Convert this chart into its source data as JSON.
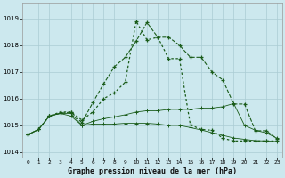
{
  "title": "Graphe pression niveau de la mer (hPa)",
  "background_color": "#cce8ee",
  "grid_color": "#aaccd4",
  "line_color": "#1a5c1a",
  "x_labels": [
    "0",
    "1",
    "2",
    "3",
    "4",
    "5",
    "6",
    "7",
    "8",
    "9",
    "10",
    "11",
    "12",
    "13",
    "14",
    "15",
    "16",
    "17",
    "18",
    "19",
    "20",
    "21",
    "22",
    "23"
  ],
  "ylim": [
    1013.8,
    1019.6
  ],
  "yticks": [
    1014,
    1015,
    1016,
    1017,
    1018,
    1019
  ],
  "series": [
    [
      1014.65,
      1014.85,
      1015.35,
      1015.45,
      1015.5,
      1015.1,
      1015.85,
      1016.55,
      1017.2,
      1017.55,
      1018.15,
      1018.85,
      1018.3,
      1018.3,
      1018.0,
      1017.55,
      1017.55,
      1017.0,
      1016.7,
      1015.8,
      1015.8,
      1014.8,
      1014.8,
      1014.5
    ],
    [
      1014.65,
      1014.85,
      1015.35,
      1015.45,
      1015.35,
      1015.0,
      1015.05,
      1015.05,
      1015.05,
      1015.08,
      1015.08,
      1015.08,
      1015.05,
      1015.0,
      1015.0,
      1014.92,
      1014.83,
      1014.73,
      1014.63,
      1014.53,
      1014.48,
      1014.43,
      1014.42,
      1014.4
    ],
    [
      1014.65,
      1014.85,
      1015.35,
      1015.45,
      1015.45,
      1015.0,
      1015.15,
      1015.25,
      1015.32,
      1015.4,
      1015.5,
      1015.55,
      1015.55,
      1015.6,
      1015.6,
      1015.6,
      1015.65,
      1015.65,
      1015.7,
      1015.82,
      1015.0,
      1014.82,
      1014.72,
      1014.52
    ],
    [
      1014.65,
      1014.85,
      1015.35,
      1015.5,
      1015.5,
      1015.2,
      1015.5,
      1016.0,
      1016.22,
      1016.62,
      1018.9,
      1018.2,
      1018.3,
      1017.5,
      1017.5,
      1015.02,
      1014.85,
      1014.82,
      1014.52,
      1014.42,
      1014.42,
      1014.42,
      1014.42,
      1014.42
    ]
  ]
}
